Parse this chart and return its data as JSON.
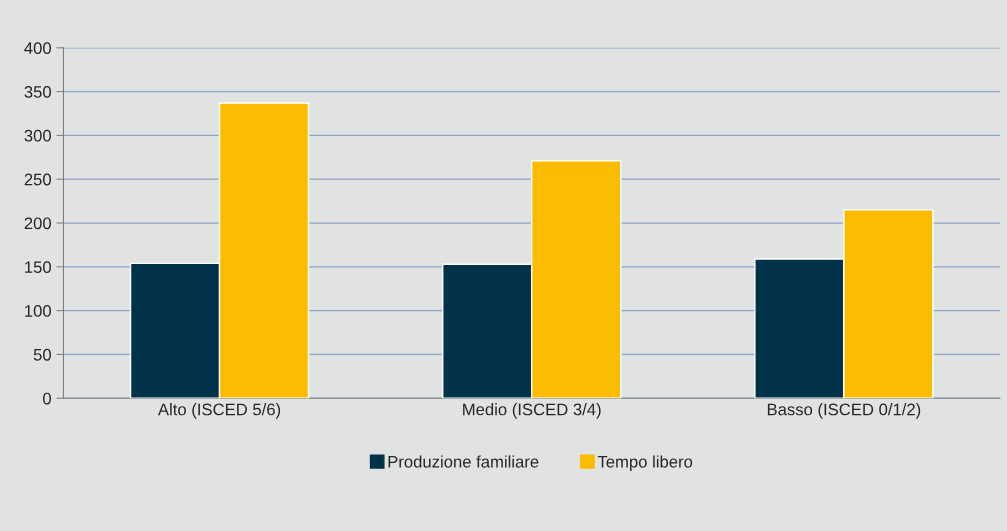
{
  "chart_data": {
    "type": "bar",
    "categories": [
      "Alto (ISCED 5/6)",
      "Medio (ISCED 3/4)",
      "Basso (ISCED 0/1/2)"
    ],
    "series": [
      {
        "name": "Produzione familiare",
        "color": "#02324a",
        "values": [
          154,
          153,
          159
        ]
      },
      {
        "name": "Tempo libero",
        "color": "#fbbb00",
        "values": [
          337,
          271,
          215
        ]
      }
    ],
    "ylim": [
      0,
      400
    ],
    "yticks": [
      0,
      50,
      100,
      150,
      200,
      250,
      300,
      350,
      400
    ],
    "grid": "y",
    "legend": "bottom"
  }
}
